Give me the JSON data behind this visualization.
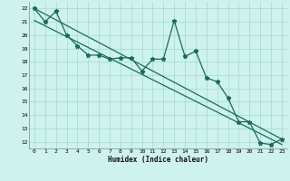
{
  "xlabel": "Humidex (Indice chaleur)",
  "bg_color": "#cef2ee",
  "grid_color": "#aaddd8",
  "line_color": "#1a6b5a",
  "xlim": [
    -0.5,
    23.5
  ],
  "ylim": [
    11.5,
    22.5
  ],
  "xticks": [
    0,
    1,
    2,
    3,
    4,
    5,
    6,
    7,
    8,
    9,
    10,
    11,
    12,
    13,
    14,
    15,
    16,
    17,
    18,
    19,
    20,
    21,
    22,
    23
  ],
  "yticks": [
    12,
    13,
    14,
    15,
    16,
    17,
    18,
    19,
    20,
    21,
    22
  ],
  "line1_x": [
    0,
    1,
    2,
    3,
    4,
    5,
    6,
    7,
    8,
    9,
    10,
    11,
    12,
    13,
    14,
    15,
    16,
    17,
    18,
    19,
    20,
    21,
    22,
    23
  ],
  "line1_y": [
    22,
    21,
    21.8,
    20,
    19.2,
    18.5,
    18.5,
    18.2,
    18.3,
    18.3,
    17.3,
    18.2,
    18.2,
    21.1,
    18.4,
    18.8,
    16.8,
    16.5,
    15.3,
    13.5,
    13.5,
    11.9,
    11.8,
    12.2
  ],
  "line2_x": [
    0,
    23
  ],
  "line2_y": [
    22,
    12.2
  ],
  "line3_x": [
    0,
    23
  ],
  "line3_y": [
    21.1,
    11.8
  ]
}
